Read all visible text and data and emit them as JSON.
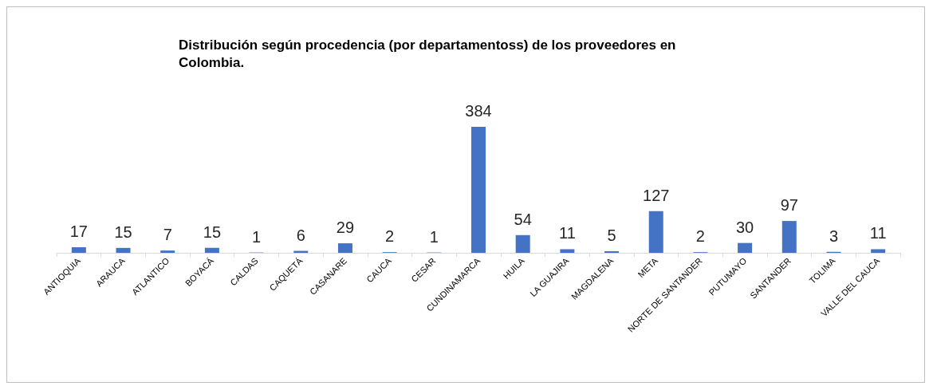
{
  "chart_data": {
    "type": "bar",
    "title": "Distribución según procedencia (por departamentoss) de los proveedores en Colombia.",
    "categories": [
      "ANTIOQUIA",
      "ARAUCA",
      "ATLANTICO",
      "BOYACÁ",
      "CALDAS",
      "CAQUETÁ",
      "CASANARE",
      "CAUCA",
      "CESAR",
      "CUNDINAMARCA",
      "HUILA",
      "LA GUAJIRA",
      "MAGDALENA",
      "META",
      "NORTE DE SANTANDER",
      "PUTUMAYO",
      "SANTANDER",
      "TOLIMA",
      "VALLE DEL CAUCA"
    ],
    "values": [
      17,
      15,
      7,
      15,
      1,
      6,
      29,
      2,
      1,
      384,
      54,
      11,
      5,
      127,
      2,
      30,
      97,
      3,
      11
    ],
    "color": "#4472c4",
    "data_labels": true
  }
}
